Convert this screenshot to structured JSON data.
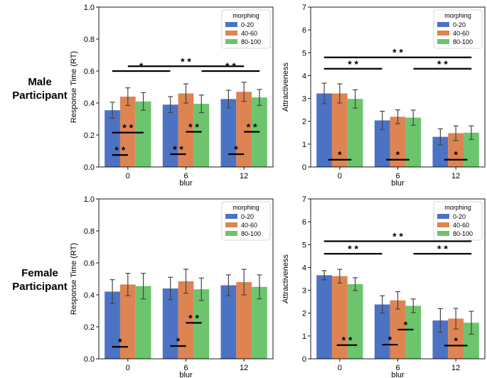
{
  "row_labels": [
    {
      "line1": "Male",
      "line2": "Participant"
    },
    {
      "line1": "Female",
      "line2": "Participant"
    }
  ],
  "colors": {
    "0-20": "#4c72c4",
    "40-60": "#dd8452",
    "80-100": "#6cc46c"
  },
  "chart_data": [
    {
      "type": "bar",
      "row": "Male Participant",
      "xlabel": "blur",
      "ylabel": "Response Time (RT)",
      "ylim": [
        0,
        1.0
      ],
      "yticks": [
        "0.0",
        "0.2",
        "0.4",
        "0.6",
        "0.8",
        "1.0"
      ],
      "ytick_values": [
        0,
        0.2,
        0.4,
        0.6,
        0.8,
        1.0
      ],
      "categories": [
        "0",
        "6",
        "12"
      ],
      "legend": {
        "title": "morphing",
        "placement": "top-right"
      },
      "series": [
        {
          "name": "0-20",
          "values": [
            0.355,
            0.39,
            0.425
          ],
          "err": [
            0.05,
            0.05,
            0.055
          ]
        },
        {
          "name": "40-60",
          "values": [
            0.44,
            0.46,
            0.47
          ],
          "err": [
            0.055,
            0.06,
            0.06
          ]
        },
        {
          "name": "80-100",
          "values": [
            0.41,
            0.395,
            0.435
          ],
          "err": [
            0.055,
            0.055,
            0.05
          ]
        }
      ],
      "annotations": [
        {
          "label": "* *",
          "y": 0.63,
          "x_from": 0.0,
          "x_to": 2.0
        },
        {
          "label": "*",
          "y": 0.6,
          "x_from": -0.27,
          "x_to": 0.73
        },
        {
          "label": "* *",
          "y": 0.6,
          "x_from": 1.27,
          "x_to": 2.27
        },
        {
          "label": "* *",
          "y": 0.215,
          "x_from": -0.27,
          "x_to": 0.27
        },
        {
          "label": "* *",
          "y": 0.075,
          "x_from": -0.27,
          "x_to": 0.0
        },
        {
          "label": "* *",
          "y": 0.08,
          "x_from": 0.73,
          "x_to": 1.0
        },
        {
          "label": "* *",
          "y": 0.22,
          "x_from": 1.0,
          "x_to": 1.27
        },
        {
          "label": "*",
          "y": 0.08,
          "x_from": 1.73,
          "x_to": 2.0
        },
        {
          "label": "* *",
          "y": 0.22,
          "x_from": 2.0,
          "x_to": 2.27
        }
      ]
    },
    {
      "type": "bar",
      "row": "Male Participant",
      "xlabel": "blur",
      "ylabel": "Attractiveness",
      "ylim": [
        0,
        7
      ],
      "yticks": [
        "0",
        "1",
        "2",
        "3",
        "4",
        "5",
        "6",
        "7"
      ],
      "ytick_values": [
        0,
        1,
        2,
        3,
        4,
        5,
        6,
        7
      ],
      "categories": [
        "0",
        "6",
        "12"
      ],
      "legend": {
        "title": "morphing",
        "placement": "top-right"
      },
      "series": [
        {
          "name": "0-20",
          "values": [
            3.22,
            2.04,
            1.32
          ],
          "err": [
            0.45,
            0.4,
            0.35
          ]
        },
        {
          "name": "40-60",
          "values": [
            3.22,
            2.2,
            1.48
          ],
          "err": [
            0.42,
            0.3,
            0.32
          ]
        },
        {
          "name": "80-100",
          "values": [
            2.98,
            2.16,
            1.5
          ],
          "err": [
            0.4,
            0.33,
            0.3
          ]
        }
      ],
      "annotations": [
        {
          "label": "* *",
          "y": 4.8,
          "x_from": -0.27,
          "x_to": 2.27
        },
        {
          "label": "* *",
          "y": 4.3,
          "x_from": -0.27,
          "x_to": 0.73
        },
        {
          "label": "* *",
          "y": 4.3,
          "x_from": 1.27,
          "x_to": 2.27
        },
        {
          "label": "*",
          "y": 0.32,
          "x_from": -0.2,
          "x_to": 0.2
        },
        {
          "label": "*",
          "y": 0.32,
          "x_from": 0.8,
          "x_to": 1.2
        },
        {
          "label": "*",
          "y": 0.32,
          "x_from": 1.8,
          "x_to": 2.2
        }
      ]
    },
    {
      "type": "bar",
      "row": "Female Participant",
      "xlabel": "blur",
      "ylabel": "Response Time (RT)",
      "ylim": [
        0,
        1.0
      ],
      "yticks": [
        "0.0",
        "0.2",
        "0.4",
        "0.6",
        "0.8",
        "1.0"
      ],
      "ytick_values": [
        0,
        0.2,
        0.4,
        0.6,
        0.8,
        1.0
      ],
      "categories": [
        "0",
        "6",
        "12"
      ],
      "legend": {
        "title": "morphing",
        "placement": "top-right"
      },
      "series": [
        {
          "name": "0-20",
          "values": [
            0.42,
            0.44,
            0.46
          ],
          "err": [
            0.075,
            0.07,
            0.065
          ]
        },
        {
          "name": "40-60",
          "values": [
            0.465,
            0.485,
            0.48
          ],
          "err": [
            0.07,
            0.075,
            0.08
          ]
        },
        {
          "name": "80-100",
          "values": [
            0.455,
            0.435,
            0.45
          ],
          "err": [
            0.08,
            0.07,
            0.075
          ]
        }
      ],
      "annotations": [
        {
          "label": "*",
          "y": 0.075,
          "x_from": -0.27,
          "x_to": 0.0
        },
        {
          "label": "*",
          "y": 0.08,
          "x_from": 0.73,
          "x_to": 1.0
        },
        {
          "label": "* *",
          "y": 0.225,
          "x_from": 1.0,
          "x_to": 1.27
        }
      ]
    },
    {
      "type": "bar",
      "row": "Female Participant",
      "xlabel": "blur",
      "ylabel": "Attractiveness",
      "ylim": [
        0,
        7
      ],
      "yticks": [
        "0",
        "1",
        "2",
        "3",
        "4",
        "5",
        "6",
        "7"
      ],
      "ytick_values": [
        0,
        1,
        2,
        3,
        4,
        5,
        6,
        7
      ],
      "categories": [
        "0",
        "6",
        "12"
      ],
      "legend": {
        "title": "morphing",
        "placement": "top-right"
      },
      "series": [
        {
          "name": "0-20",
          "values": [
            3.66,
            2.38,
            1.68
          ],
          "err": [
            0.2,
            0.38,
            0.52
          ]
        },
        {
          "name": "40-60",
          "values": [
            3.62,
            2.56,
            1.76
          ],
          "err": [
            0.3,
            0.38,
            0.45
          ]
        },
        {
          "name": "80-100",
          "values": [
            3.27,
            2.32,
            1.58
          ],
          "err": [
            0.28,
            0.3,
            0.5
          ]
        }
      ],
      "annotations": [
        {
          "label": "* *",
          "y": 5.15,
          "x_from": -0.27,
          "x_to": 2.27
        },
        {
          "label": "* *",
          "y": 4.6,
          "x_from": -0.27,
          "x_to": 0.73
        },
        {
          "label": "* *",
          "y": 4.6,
          "x_from": 1.27,
          "x_to": 2.27
        },
        {
          "label": "* *",
          "y": 0.6,
          "x_from": -0.05,
          "x_to": 0.3
        },
        {
          "label": "*",
          "y": 0.62,
          "x_from": 0.73,
          "x_to": 1.0
        },
        {
          "label": "*",
          "y": 1.28,
          "x_from": 1.0,
          "x_to": 1.27
        },
        {
          "label": "*",
          "y": 0.58,
          "x_from": 1.8,
          "x_to": 2.2
        }
      ]
    }
  ]
}
